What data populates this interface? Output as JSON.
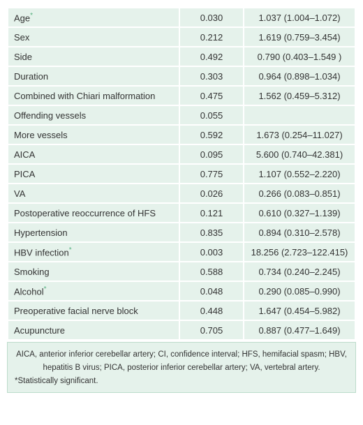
{
  "table": {
    "rows": [
      {
        "variable": "Age",
        "note": "*",
        "p": "0.030",
        "or": "1.037 (1.004–1.072)"
      },
      {
        "variable": "Sex",
        "p": "0.212",
        "or": "1.619 (0.759–3.454)"
      },
      {
        "variable": "Side",
        "p": "0.492",
        "or": "0.790 (0.403–1.549 )"
      },
      {
        "variable": "Duration",
        "p": "0.303",
        "or": "0.964 (0.898–1.034)"
      },
      {
        "variable": "Combined with Chiari malformation",
        "p": "0.475",
        "or": "1.562 (0.459–5.312)"
      },
      {
        "variable": "Offending vessels",
        "p": "0.055"
      },
      {
        "variable": "More vessels",
        "p": "0.592",
        "or": "1.673 (0.254–11.027)"
      },
      {
        "variable": "AICA",
        "p": "0.095",
        "or": "5.600 (0.740–42.381)"
      },
      {
        "variable": "PICA",
        "p": "0.775",
        "or": "1.107 (0.552–2.220)"
      },
      {
        "variable": "VA",
        "p": "0.026",
        "or": "0.266 (0.083–0.851)"
      },
      {
        "variable": "Postoperative reoccurrence of HFS",
        "p": "0.121",
        "or": "0.610 (0.327–1.139)"
      },
      {
        "variable": "Hypertension",
        "p": "0.835",
        "or": "0.894 (0.310–2.578)"
      },
      {
        "variable": "HBV infection",
        "note": "*",
        "p": "0.003",
        "or": "18.256 (2.723–122.415)"
      },
      {
        "variable": "Smoking",
        "p": "0.588",
        "or": "0.734 (0.240–2.245)"
      },
      {
        "variable": "Alcohol",
        "note": "*",
        "p": "0.048",
        "or": "0.290 (0.085–0.990)"
      },
      {
        "variable": "Preoperative facial nerve block",
        "p": "0.448",
        "or": "1.647 (0.454–5.982)"
      },
      {
        "variable": "Acupuncture",
        "p": "0.705",
        "or": "0.887 (0.477–1.649)"
      }
    ]
  },
  "footnote": {
    "abbreviations": "AICA, anterior inferior cerebellar artery; CI, confidence interval; HFS, hemifacial spasm; HBV, hepatitis B virus; PICA, posterior inferior cerebellar artery; VA, vertebral artery.",
    "significance": "*Statistically significant."
  }
}
